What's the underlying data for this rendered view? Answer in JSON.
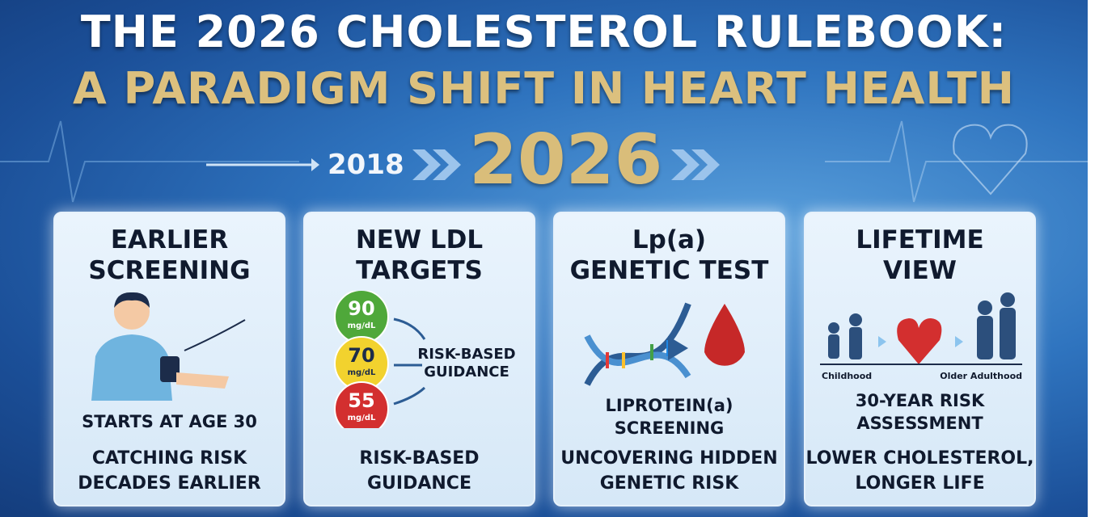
{
  "header": {
    "title_line1": "THE 2026 CHOLESTEROL RULEBOOK:",
    "title_line2": "A PARADIGM SHIFT IN HEART HEALTH"
  },
  "timeline": {
    "from": "2018",
    "to": "2026"
  },
  "cards": [
    {
      "title": [
        "EARLIER",
        "SCREENING"
      ],
      "caption": [
        "STARTS AT AGE 30"
      ],
      "footer": [
        "CATCHING RISK",
        "DECADES EARLIER"
      ]
    },
    {
      "title": [
        "NEW LDL",
        "TARGETS"
      ],
      "targets": [
        {
          "value": "90",
          "unit": "mg/dL"
        },
        {
          "value": "70",
          "unit": "mg/dL"
        },
        {
          "value": "55",
          "unit": "mg/dL"
        }
      ],
      "arrow_label": [
        "RISK-BASED",
        "GUIDANCE"
      ],
      "footer": [
        "RISK-BASED",
        "GUIDANCE"
      ]
    },
    {
      "title": [
        "Lp(a)",
        "GENETIC TEST"
      ],
      "caption": [
        "LIPROTEIN(a)",
        "SCREENING"
      ],
      "footer": [
        "UNCOVERING HIDDEN",
        "GENETIC RISK"
      ]
    },
    {
      "title": [
        "LIFETIME",
        "VIEW"
      ],
      "life_labels": [
        "Childhood",
        "Older Adulthood"
      ],
      "caption": [
        "30-YEAR RISK",
        "ASSESSMENT"
      ],
      "footer": [
        "LOWER CHOLESTEROL,",
        "LONGER LIFE"
      ]
    }
  ]
}
